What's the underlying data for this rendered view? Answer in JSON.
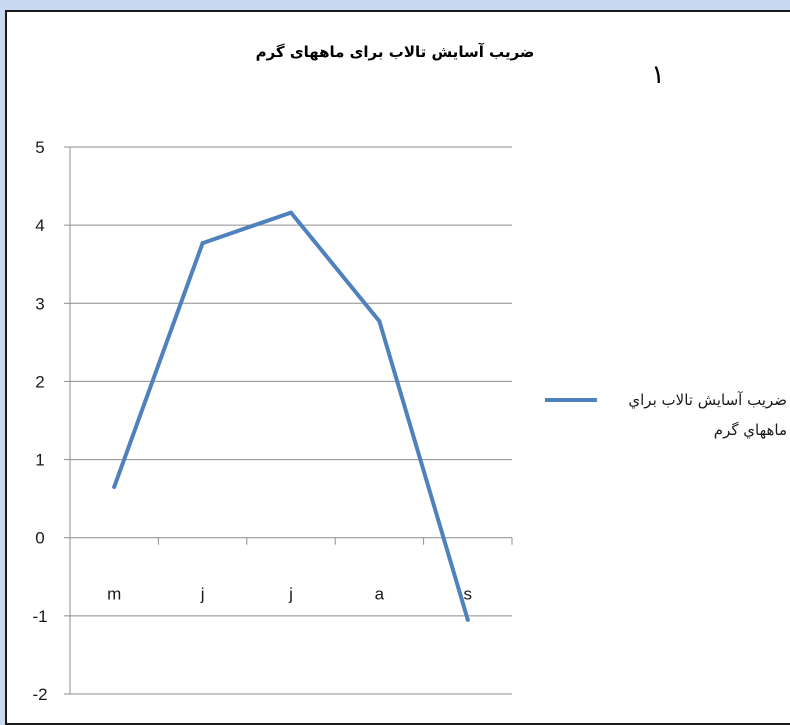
{
  "chart_data": {
    "type": "line",
    "title": "ضریب آسایش تالاب برای ماههای گرم",
    "categories": [
      "m",
      "j",
      "j",
      "a",
      "s"
    ],
    "series": [
      {
        "name": "ضريب آسايش تالاب براي ماههاي گرم",
        "values": [
          0.65,
          3.77,
          4.16,
          2.77,
          -1.05
        ],
        "color": "#4f81bd"
      }
    ],
    "y_ticks": [
      "5",
      "4",
      "3",
      "2",
      "1",
      "0",
      "-1",
      "-2"
    ],
    "ylim": [
      -2,
      5
    ],
    "grid": true,
    "legend_position": "right"
  },
  "page_mark": "۱"
}
